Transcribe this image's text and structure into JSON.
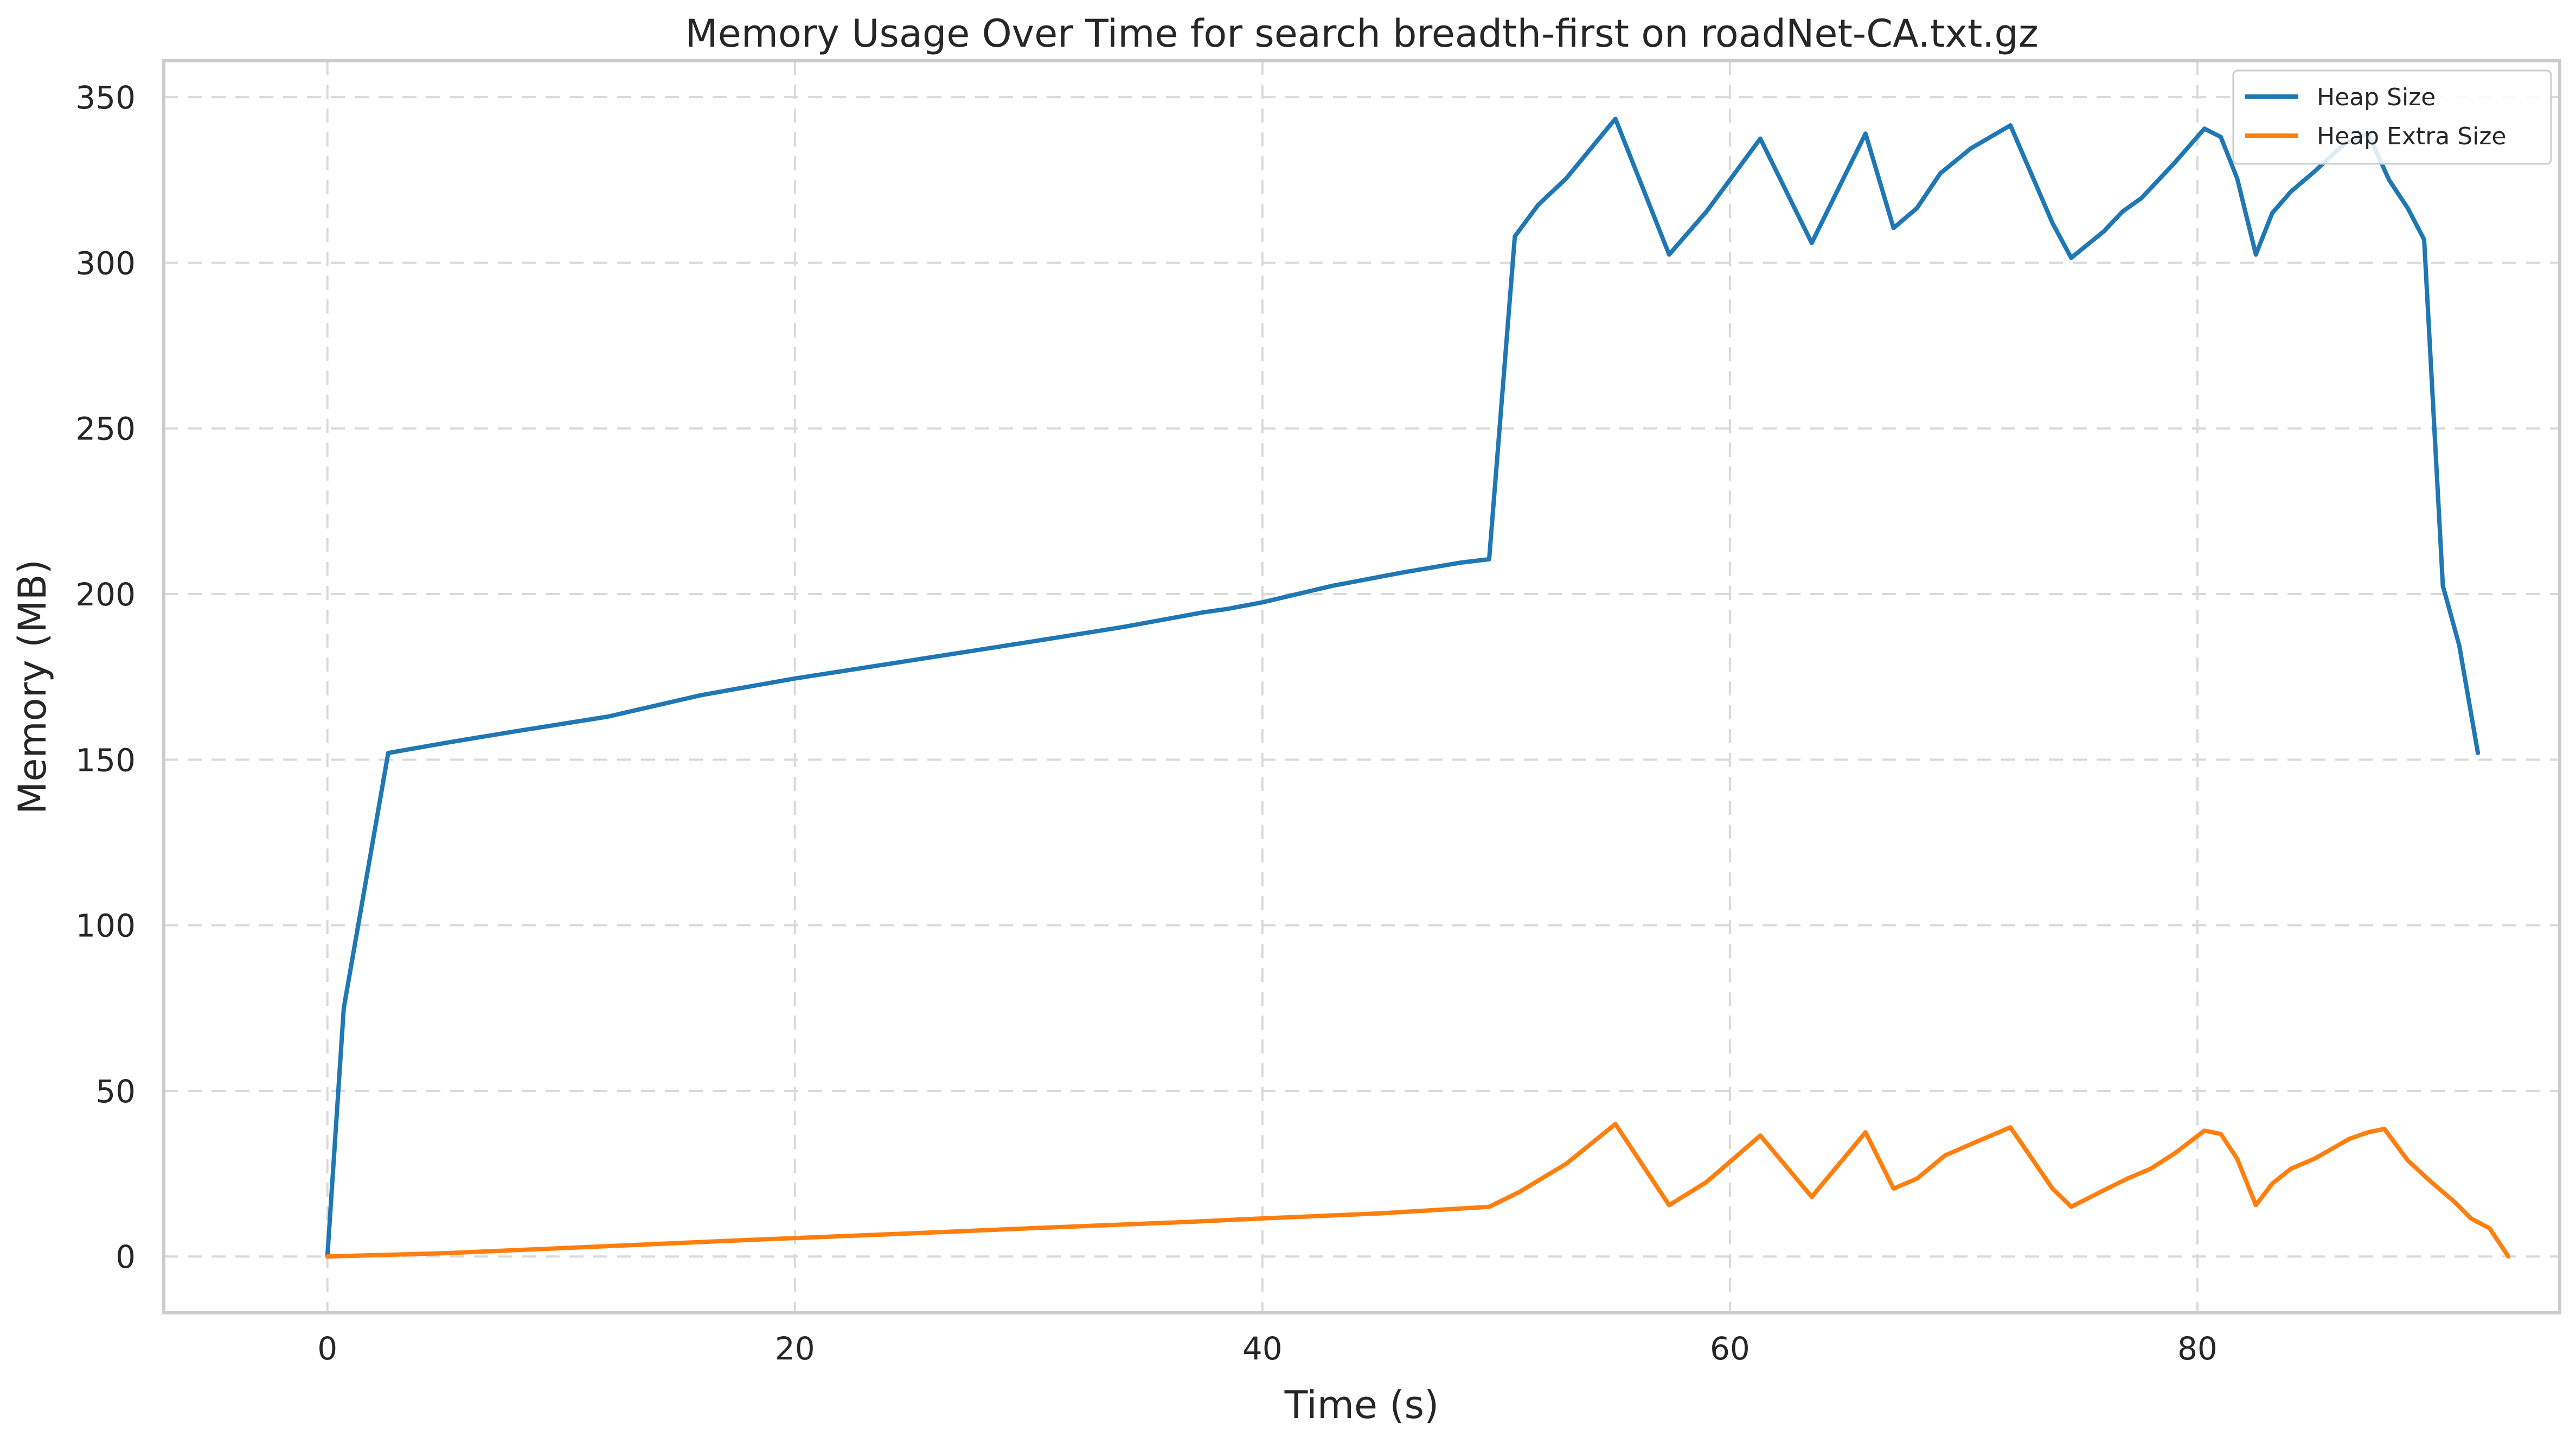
{
  "chart_data": {
    "type": "line",
    "title": "Memory Usage Over Time for search breadth-first on roadNet-CA.txt.gz",
    "xlabel": "Time (s)",
    "ylabel": "Memory (MB)",
    "xlim": [
      -7,
      95.5
    ],
    "ylim": [
      -17,
      361
    ],
    "xticks": [
      0,
      20,
      40,
      60,
      80
    ],
    "yticks": [
      0,
      50,
      100,
      150,
      200,
      250,
      300,
      350
    ],
    "grid": true,
    "legend": {
      "position": "top-right"
    },
    "series": [
      {
        "name": "Heap Size",
        "color": "#1f77b4",
        "points": [
          [
            0,
            0
          ],
          [
            0.7,
            75
          ],
          [
            2.6,
            152
          ],
          [
            5,
            155
          ],
          [
            8,
            158.5
          ],
          [
            12,
            163
          ],
          [
            16,
            169.5
          ],
          [
            20,
            174.5
          ],
          [
            25,
            180
          ],
          [
            30,
            185.5
          ],
          [
            34,
            190
          ],
          [
            37.5,
            194.5
          ],
          [
            38.5,
            195.5
          ],
          [
            40,
            197.5
          ],
          [
            43,
            202.5
          ],
          [
            46,
            206.5
          ],
          [
            48.5,
            209.5
          ],
          [
            49.7,
            210.5
          ],
          [
            50.8,
            308
          ],
          [
            51.8,
            317.5
          ],
          [
            53,
            325.5
          ],
          [
            55.1,
            343.5
          ],
          [
            57.4,
            302.5
          ],
          [
            59,
            315.5
          ],
          [
            61.3,
            337.5
          ],
          [
            63.5,
            306
          ],
          [
            65.8,
            339
          ],
          [
            67,
            310.5
          ],
          [
            68,
            316.5
          ],
          [
            69,
            327
          ],
          [
            70.3,
            334.5
          ],
          [
            72,
            341.5
          ],
          [
            73.8,
            312
          ],
          [
            74.6,
            301.5
          ],
          [
            76,
            309.5
          ],
          [
            76.8,
            315.5
          ],
          [
            77.6,
            319.5
          ],
          [
            79,
            330
          ],
          [
            80.3,
            340.5
          ],
          [
            81,
            338
          ],
          [
            81.7,
            325.5
          ],
          [
            82.5,
            302.5
          ],
          [
            83.2,
            315
          ],
          [
            84,
            321.5
          ],
          [
            85,
            327.5
          ],
          [
            86.3,
            336
          ],
          [
            87.3,
            339
          ],
          [
            88.2,
            325
          ],
          [
            89,
            316.5
          ],
          [
            89.7,
            307
          ],
          [
            90.5,
            202.5
          ],
          [
            91.2,
            184.5
          ],
          [
            92,
            152
          ]
        ]
      },
      {
        "name": "Heap Extra Size",
        "color": "#ff7f0e",
        "points": [
          [
            0,
            0
          ],
          [
            5,
            1
          ],
          [
            10,
            2.5
          ],
          [
            18,
            5
          ],
          [
            25,
            7
          ],
          [
            30,
            8.5
          ],
          [
            37,
            10.5
          ],
          [
            40,
            11.5
          ],
          [
            45,
            13
          ],
          [
            48.5,
            14.5
          ],
          [
            49.7,
            15
          ],
          [
            51,
            19.5
          ],
          [
            53,
            28
          ],
          [
            55.1,
            40
          ],
          [
            57.4,
            15.5
          ],
          [
            59,
            22.5
          ],
          [
            61.3,
            36.5
          ],
          [
            63.5,
            18
          ],
          [
            65.8,
            37.5
          ],
          [
            67,
            20.5
          ],
          [
            68,
            23.5
          ],
          [
            69.2,
            30.5
          ],
          [
            70.5,
            34.5
          ],
          [
            72,
            39
          ],
          [
            73.8,
            20.5
          ],
          [
            74.6,
            15
          ],
          [
            76,
            20
          ],
          [
            77,
            23.5
          ],
          [
            78,
            26.5
          ],
          [
            79,
            31
          ],
          [
            80.3,
            38
          ],
          [
            81,
            37
          ],
          [
            81.7,
            29.5
          ],
          [
            82.5,
            15.5
          ],
          [
            83.2,
            22
          ],
          [
            84,
            26.5
          ],
          [
            85,
            29.5
          ],
          [
            86.5,
            35.5
          ],
          [
            87.3,
            37.5
          ],
          [
            88,
            38.5
          ],
          [
            89,
            29
          ],
          [
            90,
            22.5
          ],
          [
            91,
            16.5
          ],
          [
            91.7,
            11.5
          ],
          [
            92.5,
            8.5
          ],
          [
            93.3,
            0
          ]
        ]
      }
    ]
  }
}
